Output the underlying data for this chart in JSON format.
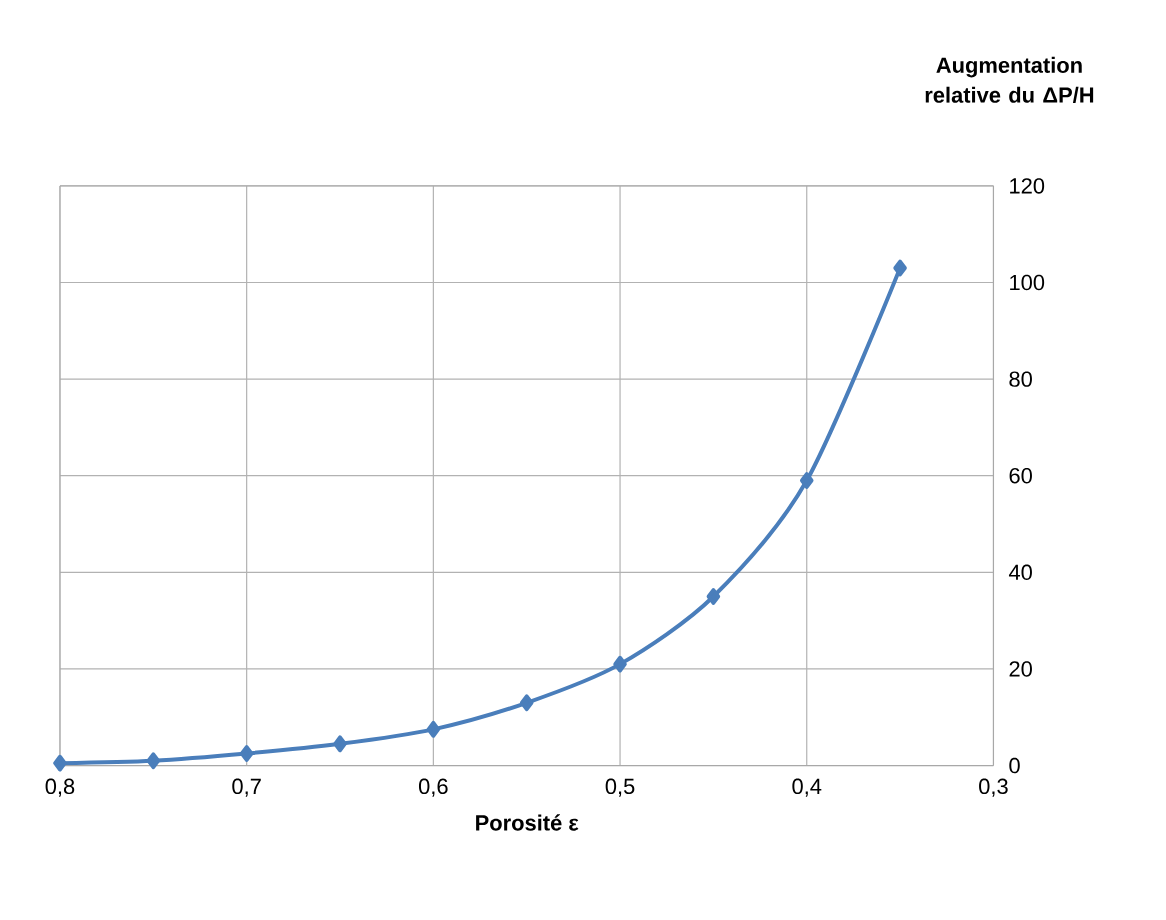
{
  "chart_data": {
    "type": "line",
    "xlabel": "Porosité ε",
    "ylabel": "Augmentation relative du ΔP/H",
    "x": [
      0.8,
      0.75,
      0.7,
      0.65,
      0.6,
      0.55,
      0.5,
      0.45,
      0.4,
      0.35
    ],
    "series": [
      {
        "color": "#4a7ebb",
        "values": [
          0.5,
          1,
          2.5,
          4.5,
          7.5,
          13,
          21,
          35,
          59,
          103
        ]
      }
    ],
    "xlim": [
      0.8,
      0.3
    ],
    "xticks": [
      {
        "value": 0.8,
        "label": "0,8"
      },
      {
        "value": 0.7,
        "label": "0,7"
      },
      {
        "value": 0.6,
        "label": "0,6"
      },
      {
        "value": 0.5,
        "label": "0,5"
      },
      {
        "value": 0.4,
        "label": "0,4"
      },
      {
        "value": 0.3,
        "label": "0,3"
      }
    ],
    "ylim": [
      0,
      120
    ],
    "yticks": [
      0,
      20,
      40,
      60,
      80,
      100,
      120
    ],
    "grid": true,
    "marker": "diamond",
    "line_style": "solid"
  }
}
